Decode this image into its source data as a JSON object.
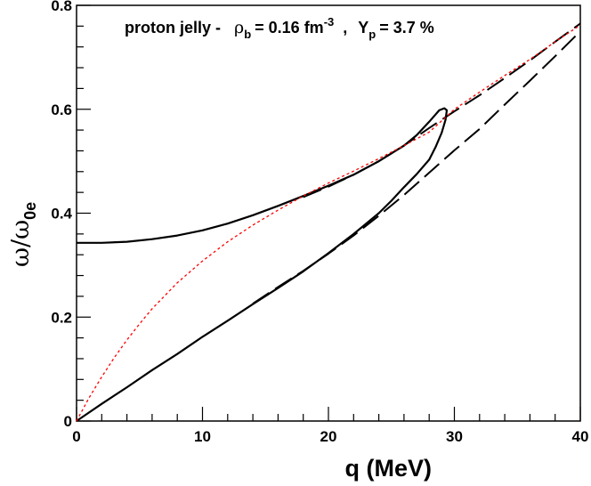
{
  "chart_data": {
    "type": "line",
    "title": {
      "prefix": "proton jelly -",
      "rho_symbol": "ρ",
      "rho_sub": "b",
      "rho_value": "= 0.16 fm",
      "rho_exp": "-3",
      "sep": ",",
      "y_symbol": "Y",
      "y_sub": "p",
      "y_value": "= 3.7 %"
    },
    "xlabel": "q (MeV)",
    "ylabel": {
      "main": "ω/ω",
      "sub": "0e"
    },
    "xlim": [
      0,
      40
    ],
    "ylim": [
      0,
      0.8
    ],
    "x_ticks": [
      "0",
      "10",
      "20",
      "30",
      "40"
    ],
    "y_ticks": [
      "0",
      "0.2",
      "0.4",
      "0.6",
      "0.8"
    ],
    "series": [
      {
        "name": "solid-curve",
        "style": "solid",
        "color": "#000000",
        "points": [
          [
            0,
            0.343
          ],
          [
            2,
            0.343
          ],
          [
            4,
            0.345
          ],
          [
            6,
            0.35
          ],
          [
            8,
            0.357
          ],
          [
            10,
            0.367
          ],
          [
            12,
            0.38
          ],
          [
            14,
            0.396
          ],
          [
            16,
            0.414
          ],
          [
            18,
            0.433
          ],
          [
            20,
            0.453
          ],
          [
            22,
            0.474
          ],
          [
            24,
            0.5
          ],
          [
            26,
            0.53
          ],
          [
            27,
            0.55
          ],
          [
            28,
            0.576
          ],
          [
            28.8,
            0.598
          ],
          [
            29.2,
            0.602
          ],
          [
            29.4,
            0.598
          ],
          [
            29.3,
            0.58
          ],
          [
            29.0,
            0.555
          ],
          [
            28.5,
            0.527
          ],
          [
            28,
            0.503
          ],
          [
            27,
            0.475
          ],
          [
            26,
            0.45
          ],
          [
            25,
            0.424
          ],
          [
            24,
            0.4
          ],
          [
            22,
            0.36
          ],
          [
            20,
            0.323
          ],
          [
            18,
            0.288
          ],
          [
            16,
            0.256
          ],
          [
            14,
            0.225
          ],
          [
            12,
            0.193
          ],
          [
            10,
            0.162
          ],
          [
            8,
            0.129
          ],
          [
            6,
            0.098
          ],
          [
            4,
            0.065
          ],
          [
            2,
            0.033
          ],
          [
            0,
            0
          ]
        ]
      },
      {
        "name": "dashed-upper",
        "style": "dashed",
        "color": "#000000",
        "points": [
          [
            18,
            0.431
          ],
          [
            20,
            0.451
          ],
          [
            22,
            0.474
          ],
          [
            24,
            0.5
          ],
          [
            26,
            0.53
          ],
          [
            28,
            0.564
          ],
          [
            30,
            0.596
          ],
          [
            32,
            0.627
          ],
          [
            34,
            0.66
          ],
          [
            36,
            0.694
          ],
          [
            38,
            0.73
          ],
          [
            40,
            0.765
          ]
        ]
      },
      {
        "name": "dashed-lower",
        "style": "dashed",
        "color": "#000000",
        "points": [
          [
            14,
            0.226
          ],
          [
            16,
            0.258
          ],
          [
            18,
            0.289
          ],
          [
            20,
            0.322
          ],
          [
            22,
            0.357
          ],
          [
            24,
            0.395
          ],
          [
            26,
            0.435
          ],
          [
            28,
            0.478
          ],
          [
            30,
            0.521
          ],
          [
            32,
            0.562
          ],
          [
            34,
            0.609
          ],
          [
            36,
            0.655
          ],
          [
            38,
            0.702
          ],
          [
            40,
            0.75
          ]
        ]
      },
      {
        "name": "dotted-red",
        "style": "dotted",
        "color": "#ff0000",
        "points": [
          [
            0,
            0
          ],
          [
            1,
            0.045
          ],
          [
            2,
            0.085
          ],
          [
            3,
            0.122
          ],
          [
            4,
            0.156
          ],
          [
            5,
            0.187
          ],
          [
            6,
            0.216
          ],
          [
            8,
            0.266
          ],
          [
            10,
            0.308
          ],
          [
            12,
            0.345
          ],
          [
            14,
            0.377
          ],
          [
            16,
            0.406
          ],
          [
            18,
            0.433
          ],
          [
            20,
            0.458
          ],
          [
            22,
            0.481
          ],
          [
            24,
            0.505
          ],
          [
            26,
            0.53
          ],
          [
            28,
            0.556
          ],
          [
            30,
            0.6
          ],
          [
            32,
            0.633
          ],
          [
            34,
            0.665
          ],
          [
            36,
            0.696
          ],
          [
            38,
            0.73
          ],
          [
            40,
            0.762
          ]
        ]
      }
    ]
  }
}
